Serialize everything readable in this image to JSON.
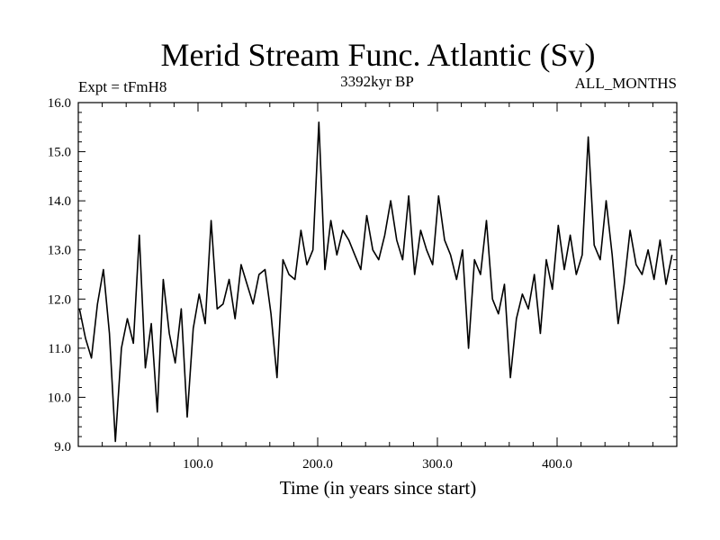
{
  "chart_data": {
    "type": "line",
    "title": "Merid Stream Func. Atlantic (Sv)",
    "subtitle_left": "Expt = tFmH8",
    "subtitle_center": "3392kyr BP",
    "subtitle_right": "ALL_MONTHS",
    "xlabel": "Time (in years since start)",
    "ylabel": "",
    "xlim": [
      0,
      500
    ],
    "ylim": [
      9.0,
      16.0
    ],
    "x_ticks": [
      100,
      200,
      300,
      400
    ],
    "x_tick_labels": [
      "100.0",
      "200.0",
      "300.0",
      "400.0"
    ],
    "y_ticks": [
      9,
      10,
      11,
      12,
      13,
      14,
      15,
      16
    ],
    "y_tick_labels": [
      "9.0",
      "10.0",
      "11.0",
      "12.0",
      "13.0",
      "14.0",
      "15.0",
      "16.0"
    ],
    "grid": false,
    "series": [
      {
        "name": "Merid Stream Func. Atlantic",
        "x_start": 1,
        "x_step": 5,
        "values": [
          11.8,
          11.2,
          10.8,
          11.9,
          12.6,
          11.3,
          9.1,
          11.0,
          11.6,
          11.1,
          13.3,
          10.6,
          11.5,
          9.7,
          12.4,
          11.3,
          10.7,
          11.8,
          9.6,
          11.4,
          12.1,
          11.5,
          13.6,
          11.8,
          11.9,
          12.4,
          11.6,
          12.7,
          12.3,
          11.9,
          12.5,
          12.6,
          11.7,
          10.4,
          12.8,
          12.5,
          12.4,
          13.4,
          12.7,
          13.0,
          15.6,
          12.6,
          13.6,
          12.9,
          13.4,
          13.2,
          12.9,
          12.6,
          13.7,
          13.0,
          12.8,
          13.3,
          14.0,
          13.2,
          12.8,
          14.1,
          12.5,
          13.4,
          13.0,
          12.7,
          14.1,
          13.2,
          12.9,
          12.4,
          13.0,
          11.0,
          12.8,
          12.5,
          13.6,
          12.0,
          11.7,
          12.3,
          10.4,
          11.6,
          12.1,
          11.8,
          12.5,
          11.3,
          12.8,
          12.2,
          13.5,
          12.6,
          13.3,
          12.5,
          12.9,
          15.3,
          13.1,
          12.8,
          14.0,
          12.9,
          11.5,
          12.3,
          13.4,
          12.7,
          12.5,
          13.0,
          12.4,
          13.2,
          12.3,
          12.9
        ]
      }
    ]
  }
}
